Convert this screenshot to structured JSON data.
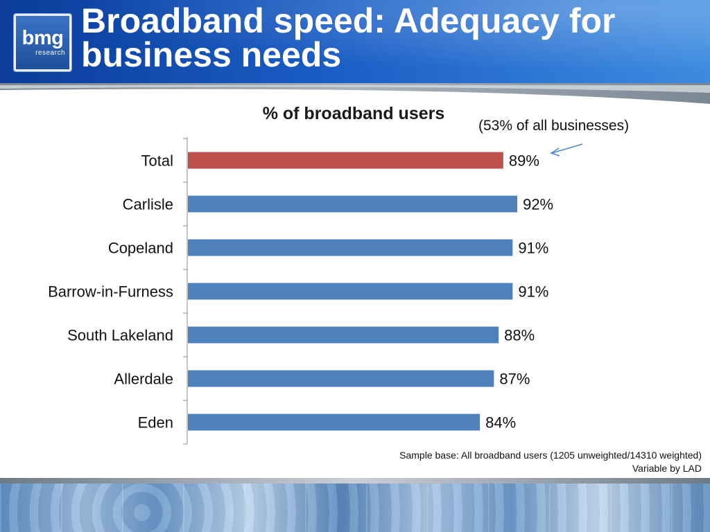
{
  "header": {
    "title": "Broadband speed: Adequacy for business needs",
    "logo_main": "bmg",
    "logo_sub": "research"
  },
  "annotation": "(53% of all businesses)",
  "footnote": {
    "line1": "Sample base: All broadband users (1205 unweighted/14310 weighted)",
    "line2": "Variable by LAD"
  },
  "colors": {
    "highlight_bar": "#c0504d",
    "bar": "#4f81bd",
    "header_dark": "#0b3d99",
    "header_light": "#3d8be0",
    "arrow": "#4a86c8"
  },
  "chart_data": {
    "type": "bar",
    "orientation": "horizontal",
    "title": "% of broadband users",
    "categories": [
      "Total",
      "Carlisle",
      "Copeland",
      "Barrow-in-Furness",
      "South Lakeland",
      "Allerdale",
      "Eden"
    ],
    "values": [
      89,
      92,
      91,
      91,
      88,
      87,
      84
    ],
    "value_labels": [
      "89%",
      "92%",
      "91%",
      "91%",
      "88%",
      "87%",
      "84%"
    ],
    "highlight": "Total",
    "xlim": [
      0,
      100
    ],
    "grid": false,
    "legend": "none"
  }
}
